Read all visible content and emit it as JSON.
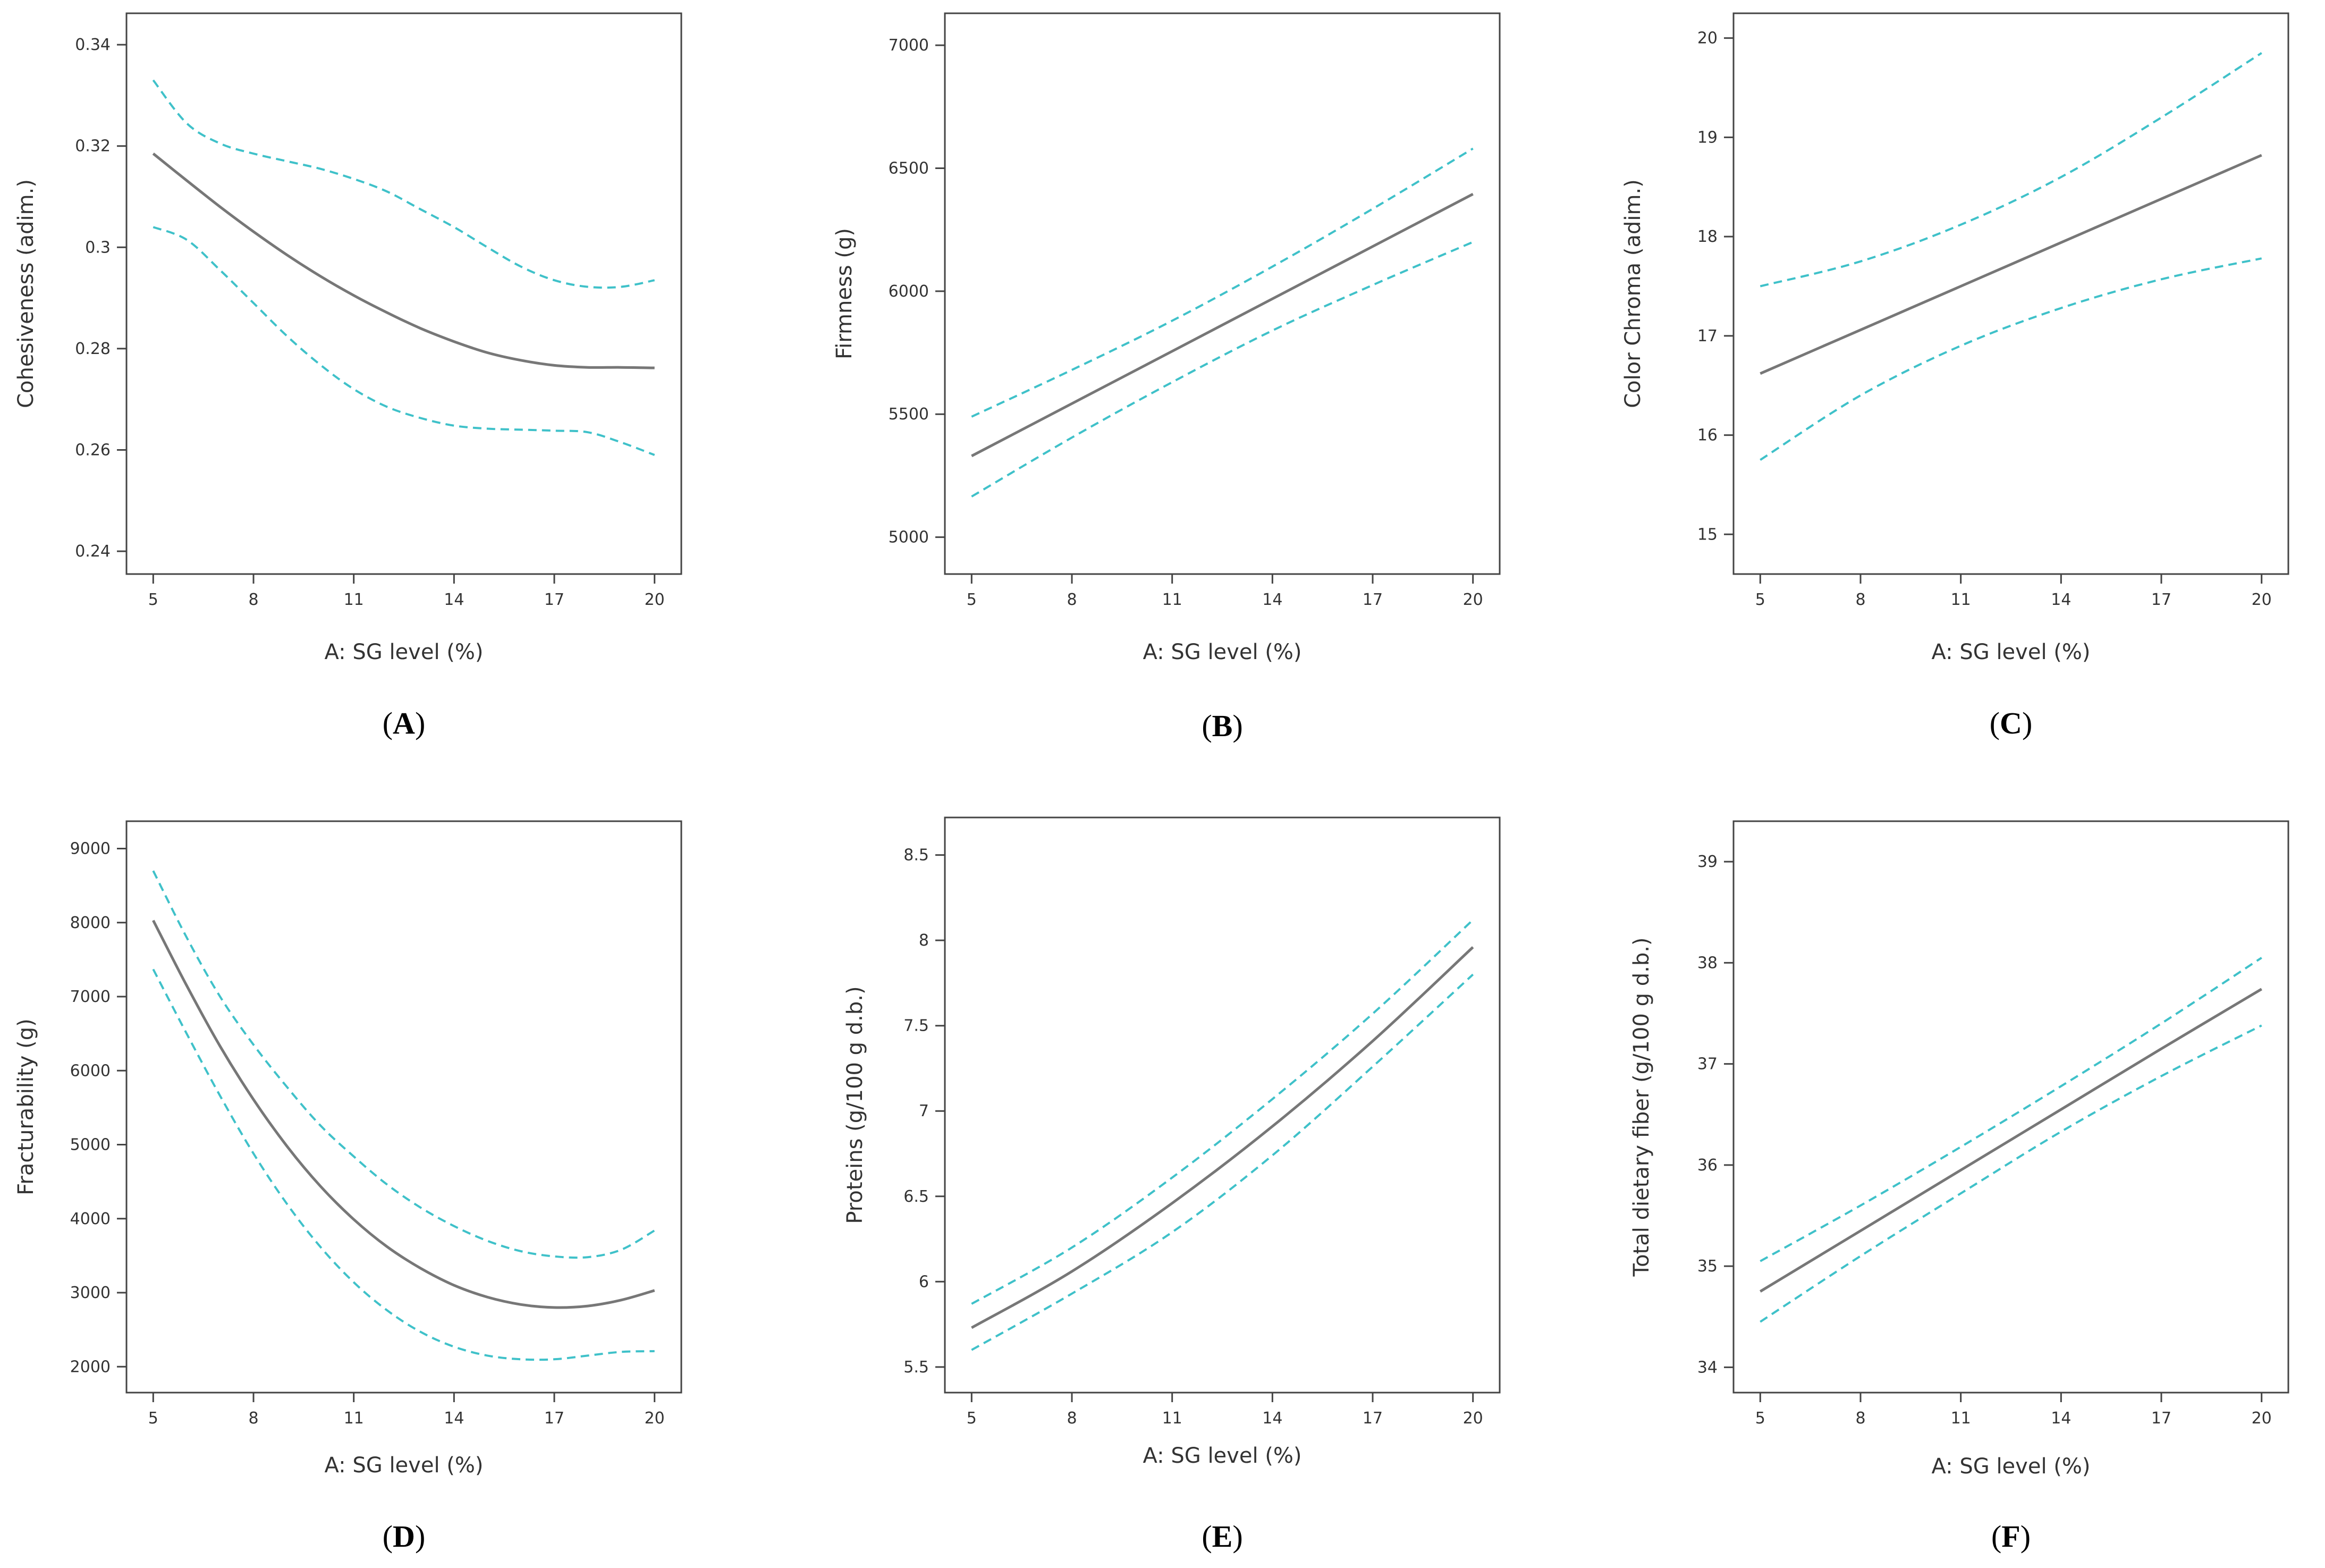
{
  "chart_data": [
    {
      "type": "line",
      "panel_label": "A",
      "xlabel": "A: SG level (%)",
      "ylabel": "Cohesiveness (adim.)",
      "x_ticks": [
        5,
        8,
        11,
        14,
        17,
        20
      ],
      "y_ticks": [
        0.24,
        0.26,
        0.28,
        0.3,
        0.32,
        0.34
      ],
      "y_tick_labels": [
        "0.24",
        "0.26",
        "0.28",
        "0.3",
        "0.32",
        "0.34"
      ],
      "xlim": [
        4.2,
        20.8
      ],
      "ylim": [
        0.2355,
        0.3462
      ],
      "x": [
        5,
        6,
        7,
        8,
        9,
        10,
        11,
        12,
        13,
        14,
        15,
        16,
        17,
        18,
        19,
        20
      ],
      "series": [
        {
          "name": "prediction",
          "color": "#777777",
          "dashed": false,
          "values": [
            0.3185,
            0.3132,
            0.308,
            0.3031,
            0.2985,
            0.2943,
            0.2905,
            0.2871,
            0.284,
            0.2814,
            0.2792,
            0.2777,
            0.2767,
            0.2763,
            0.2763,
            0.2762
          ]
        },
        {
          "name": "upper confidence band",
          "color": "#3fc1c9",
          "dashed": true,
          "values": [
            0.333,
            0.3245,
            0.3205,
            0.3185,
            0.317,
            0.3155,
            0.3135,
            0.311,
            0.3075,
            0.304,
            0.3,
            0.2962,
            0.2935,
            0.2922,
            0.2922,
            0.2935
          ]
        },
        {
          "name": "lower confidence band",
          "color": "#3fc1c9",
          "dashed": true,
          "values": [
            0.304,
            0.3015,
            0.2955,
            0.289,
            0.2825,
            0.2768,
            0.272,
            0.2685,
            0.2663,
            0.2648,
            0.2642,
            0.264,
            0.2638,
            0.2635,
            0.2615,
            0.259
          ]
        }
      ]
    },
    {
      "type": "line",
      "panel_label": "B",
      "xlabel": "A: SG level (%)",
      "ylabel": "Firmness (g)",
      "x_ticks": [
        5,
        8,
        11,
        14,
        17,
        20
      ],
      "y_ticks": [
        5000,
        5500,
        6000,
        6500,
        7000
      ],
      "y_tick_labels": [
        "5000",
        "5500",
        "6000",
        "6500",
        "7000"
      ],
      "xlim": [
        4.2,
        20.8
      ],
      "ylim": [
        4850,
        7130
      ],
      "x": [
        5,
        8,
        11,
        14,
        17,
        20
      ],
      "series": [
        {
          "name": "prediction",
          "color": "#777777",
          "dashed": false,
          "values": [
            5330,
            5543,
            5756,
            5969,
            6182,
            6395
          ]
        },
        {
          "name": "upper confidence band",
          "color": "#3fc1c9",
          "dashed": true,
          "values": [
            5490,
            5680,
            5880,
            6100,
            6335,
            6580
          ]
        },
        {
          "name": "lower confidence band",
          "color": "#3fc1c9",
          "dashed": true,
          "values": [
            5165,
            5405,
            5630,
            5840,
            6025,
            6200
          ]
        }
      ]
    },
    {
      "type": "line",
      "panel_label": "C",
      "xlabel": "A: SG level (%)",
      "ylabel": "Color Chroma (adim.)",
      "x_ticks": [
        5,
        8,
        11,
        14,
        17,
        20
      ],
      "y_ticks": [
        15,
        16,
        17,
        18,
        19,
        20
      ],
      "y_tick_labels": [
        "15",
        "16",
        "17",
        "18",
        "19",
        "20"
      ],
      "xlim": [
        4.2,
        20.8
      ],
      "ylim": [
        14.6,
        20.25
      ],
      "x": [
        5,
        8,
        11,
        14,
        17,
        20
      ],
      "series": [
        {
          "name": "prediction",
          "color": "#777777",
          "dashed": false,
          "values": [
            16.62,
            17.06,
            17.5,
            17.94,
            18.38,
            18.82
          ]
        },
        {
          "name": "upper confidence band",
          "color": "#3fc1c9",
          "dashed": true,
          "values": [
            17.5,
            17.75,
            18.12,
            18.6,
            19.2,
            19.85
          ]
        },
        {
          "name": "lower confidence band",
          "color": "#3fc1c9",
          "dashed": true,
          "values": [
            15.75,
            16.4,
            16.9,
            17.28,
            17.57,
            17.78
          ]
        }
      ]
    },
    {
      "type": "line",
      "panel_label": "D",
      "xlabel": "A: SG level (%)",
      "ylabel": "Fracturability (g)",
      "x_ticks": [
        5,
        8,
        11,
        14,
        17,
        20
      ],
      "y_ticks": [
        2000,
        3000,
        4000,
        5000,
        6000,
        7000,
        8000,
        9000
      ],
      "y_tick_labels": [
        "2000",
        "3000",
        "4000",
        "5000",
        "6000",
        "7000",
        "8000",
        "9000"
      ],
      "xlim": [
        4.2,
        20.8
      ],
      "ylim": [
        1650,
        9370
      ],
      "x": [
        5,
        6,
        7,
        8,
        9,
        10,
        11,
        12,
        13,
        14,
        15,
        16,
        17,
        18,
        19,
        20
      ],
      "series": [
        {
          "name": "prediction",
          "color": "#777777",
          "dashed": false,
          "values": [
            8030,
            7150,
            6330,
            5610,
            4980,
            4440,
            3990,
            3620,
            3330,
            3100,
            2940,
            2840,
            2800,
            2820,
            2900,
            3030
          ]
        },
        {
          "name": "upper confidence band",
          "color": "#3fc1c9",
          "dashed": true,
          "values": [
            8700,
            7800,
            7000,
            6350,
            5780,
            5260,
            4840,
            4460,
            4150,
            3900,
            3700,
            3560,
            3490,
            3480,
            3580,
            3840
          ]
        },
        {
          "name": "lower confidence band",
          "color": "#3fc1c9",
          "dashed": true,
          "values": [
            7370,
            6500,
            5660,
            4880,
            4200,
            3620,
            3140,
            2760,
            2470,
            2270,
            2150,
            2100,
            2100,
            2150,
            2200,
            2210
          ]
        }
      ]
    },
    {
      "type": "line",
      "panel_label": "E",
      "xlabel": "A: SG level (%)",
      "ylabel": "Proteins (g/100 g d.b.)",
      "x_ticks": [
        5,
        8,
        11,
        14,
        17,
        20
      ],
      "y_ticks": [
        5.5,
        6,
        6.5,
        7,
        7.5,
        8,
        8.5
      ],
      "y_tick_labels": [
        "5.5",
        "6",
        "6.5",
        "7",
        "7.5",
        "8",
        "8.5"
      ],
      "xlim": [
        4.2,
        20.8
      ],
      "ylim": [
        5.35,
        8.72
      ],
      "x": [
        5,
        8,
        11,
        14,
        17,
        20
      ],
      "series": [
        {
          "name": "prediction",
          "color": "#777777",
          "dashed": false,
          "values": [
            5.73,
            6.06,
            6.46,
            6.91,
            7.41,
            7.96
          ]
        },
        {
          "name": "upper confidence band",
          "color": "#3fc1c9",
          "dashed": true,
          "values": [
            5.87,
            6.2,
            6.61,
            7.07,
            7.57,
            8.12
          ]
        },
        {
          "name": "lower confidence band",
          "color": "#3fc1c9",
          "dashed": true,
          "values": [
            5.6,
            5.93,
            6.29,
            6.74,
            7.26,
            7.8
          ]
        }
      ]
    },
    {
      "type": "line",
      "panel_label": "F",
      "xlabel": "A: SG level (%)",
      "ylabel": "Total dietary fiber (g/100 g d.b.)",
      "x_ticks": [
        5,
        8,
        11,
        14,
        17,
        20
      ],
      "y_ticks": [
        34,
        35,
        36,
        37,
        38,
        39
      ],
      "y_tick_labels": [
        "34",
        "35",
        "36",
        "37",
        "38",
        "39"
      ],
      "xlim": [
        4.2,
        20.8
      ],
      "ylim": [
        33.75,
        39.4
      ],
      "x": [
        5,
        8,
        11,
        14,
        17,
        20
      ],
      "series": [
        {
          "name": "prediction",
          "color": "#777777",
          "dashed": false,
          "values": [
            34.75,
            35.35,
            35.95,
            36.55,
            37.15,
            37.74
          ]
        },
        {
          "name": "upper confidence band",
          "color": "#3fc1c9",
          "dashed": true,
          "values": [
            35.05,
            35.6,
            36.18,
            36.78,
            37.4,
            38.05
          ]
        },
        {
          "name": "lower confidence band",
          "color": "#3fc1c9",
          "dashed": true,
          "values": [
            34.45,
            35.1,
            35.72,
            36.33,
            36.88,
            37.38
          ]
        }
      ]
    }
  ]
}
